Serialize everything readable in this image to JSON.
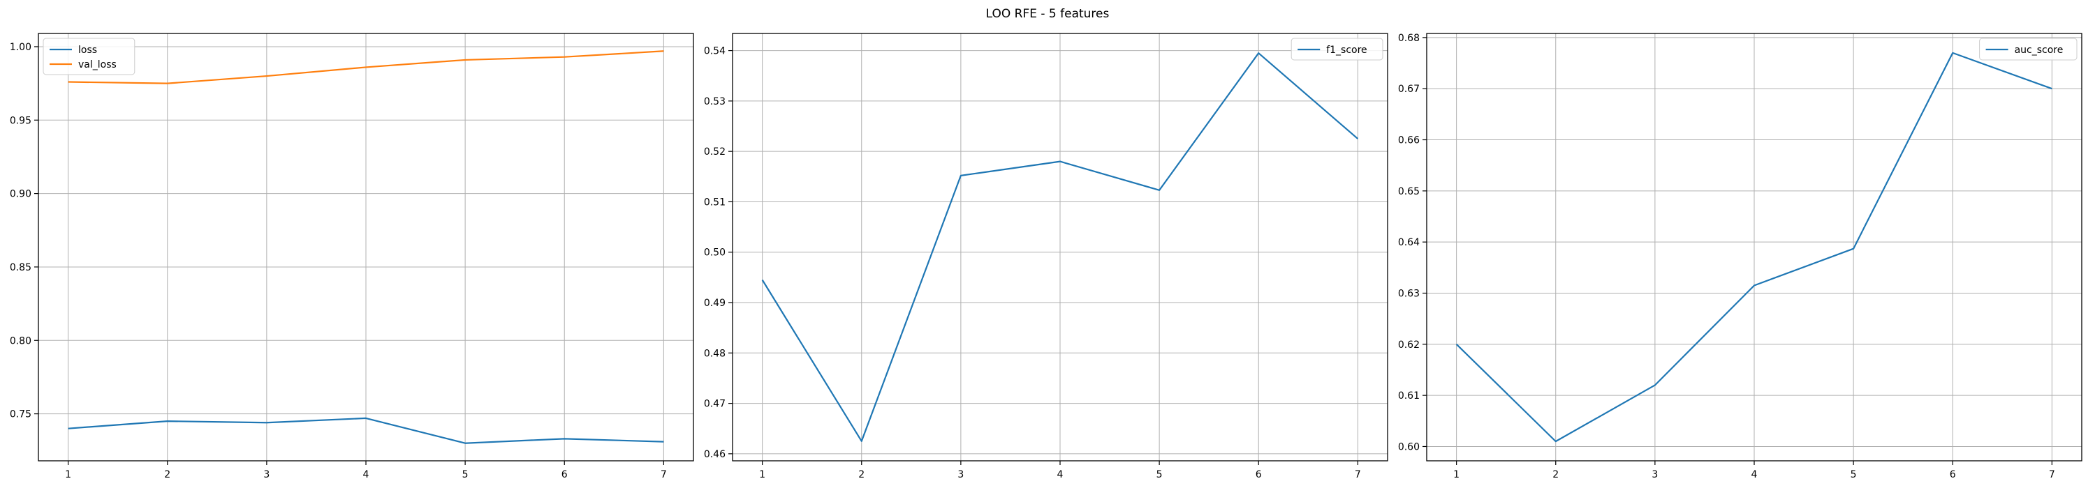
{
  "figure": {
    "title": "LOO RFE - 5 features"
  },
  "colors": {
    "c0": "#1f77b4",
    "c1": "#ff7f0e",
    "grid": "#b0b0b0",
    "axis": "#000000"
  },
  "chart_data": [
    {
      "type": "line",
      "x": [
        1,
        2,
        3,
        4,
        5,
        6,
        7
      ],
      "series": [
        {
          "name": "loss",
          "values": [
            0.74,
            0.745,
            0.744,
            0.747,
            0.73,
            0.733,
            0.731
          ]
        },
        {
          "name": "val_loss",
          "values": [
            0.976,
            0.975,
            0.98,
            0.986,
            0.991,
            0.993,
            0.997
          ]
        }
      ],
      "xlim": [
        0.7,
        7.3
      ],
      "ylim": [
        0.718,
        1.009
      ],
      "yticks": [
        0.75,
        0.8,
        0.85,
        0.9,
        0.95,
        1.0
      ],
      "ytick_labels": [
        "0.75",
        "0.80",
        "0.85",
        "0.90",
        "0.95",
        "1.00"
      ],
      "xticks": [
        1,
        2,
        3,
        4,
        5,
        6,
        7
      ],
      "grid": true,
      "legend": "upper-left"
    },
    {
      "type": "line",
      "x": [
        1,
        2,
        3,
        4,
        5,
        6,
        7
      ],
      "series": [
        {
          "name": "f1_score",
          "values": [
            0.4945,
            0.4625,
            0.5152,
            0.518,
            0.5123,
            0.5395,
            0.5225
          ]
        }
      ],
      "xlim": [
        0.7,
        7.3
      ],
      "ylim": [
        0.4586,
        0.5434
      ],
      "yticks": [
        0.46,
        0.47,
        0.48,
        0.49,
        0.5,
        0.51,
        0.52,
        0.53,
        0.54
      ],
      "ytick_labels": [
        "0.46",
        "0.47",
        "0.48",
        "0.49",
        "0.50",
        "0.51",
        "0.52",
        "0.53",
        "0.54"
      ],
      "xticks": [
        1,
        2,
        3,
        4,
        5,
        6,
        7
      ],
      "grid": true,
      "legend": "upper-right"
    },
    {
      "type": "line",
      "x": [
        1,
        2,
        3,
        4,
        5,
        6,
        7
      ],
      "series": [
        {
          "name": "auc_score",
          "values": [
            0.62,
            0.601,
            0.612,
            0.6315,
            0.6387,
            0.677,
            0.67
          ]
        }
      ],
      "xlim": [
        0.7,
        7.3
      ],
      "ylim": [
        0.5972,
        0.6808
      ],
      "yticks": [
        0.6,
        0.61,
        0.62,
        0.63,
        0.64,
        0.65,
        0.66,
        0.67,
        0.68
      ],
      "ytick_labels": [
        "0.60",
        "0.61",
        "0.62",
        "0.63",
        "0.64",
        "0.65",
        "0.66",
        "0.67",
        "0.68"
      ],
      "xticks": [
        1,
        2,
        3,
        4,
        5,
        6,
        7
      ],
      "grid": true,
      "legend": "upper-right"
    }
  ]
}
